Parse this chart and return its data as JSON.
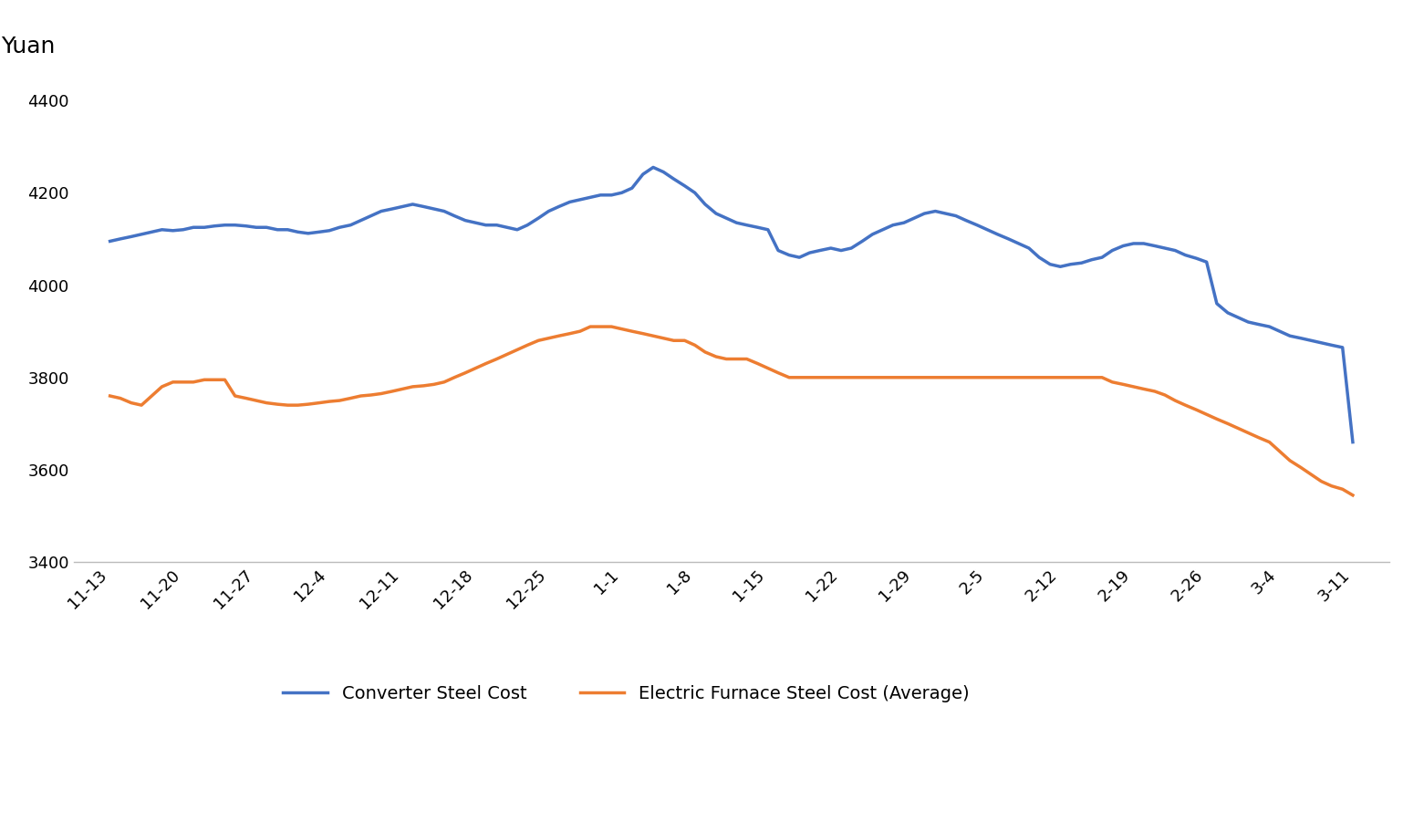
{
  "x_labels": [
    "11-13",
    "11-20",
    "11-27",
    "12-4",
    "12-11",
    "12-18",
    "12-25",
    "1-1",
    "1-8",
    "1-15",
    "1-22",
    "1-29",
    "2-5",
    "2-12",
    "2-19",
    "2-26",
    "3-4",
    "3-11"
  ],
  "converter_steel_x": [
    0,
    0.14,
    0.29,
    0.43,
    0.57,
    0.71,
    0.86,
    1.0,
    1.14,
    1.29,
    1.43,
    1.57,
    1.71,
    1.86,
    2.0,
    2.14,
    2.29,
    2.43,
    2.57,
    2.71,
    2.86,
    3.0,
    3.14,
    3.29,
    3.43,
    3.57,
    3.71,
    3.86,
    4.0,
    4.14,
    4.29,
    4.43,
    4.57,
    4.71,
    4.86,
    5.0,
    5.14,
    5.29,
    5.43,
    5.57,
    5.71,
    5.86,
    6.0,
    6.14,
    6.29,
    6.43,
    6.57,
    6.71,
    6.86,
    7.0,
    7.14,
    7.29,
    7.43,
    7.57,
    7.71,
    7.86,
    8.0,
    8.14,
    8.29,
    8.43,
    8.57,
    8.71,
    8.86,
    9.0,
    9.14,
    9.29,
    9.43,
    9.57,
    9.71,
    9.86,
    10.0,
    10.14,
    10.29,
    10.43,
    10.57,
    10.71,
    10.86,
    11.0,
    11.14,
    11.29,
    11.43,
    11.57,
    11.71,
    11.86,
    12.0,
    12.14,
    12.29,
    12.43,
    12.57,
    12.71,
    12.86,
    13.0,
    13.14,
    13.29,
    13.43,
    13.57,
    13.71,
    13.86,
    14.0,
    14.14,
    14.29,
    14.43,
    14.57,
    14.71,
    14.86,
    15.0,
    15.14,
    15.29,
    15.43,
    15.57,
    15.71,
    15.86,
    16.0,
    16.14,
    16.29,
    16.43,
    16.57,
    16.71,
    16.86,
    17.0
  ],
  "converter_steel_y": [
    4095,
    4100,
    4105,
    4110,
    4115,
    4120,
    4118,
    4120,
    4125,
    4125,
    4128,
    4130,
    4130,
    4128,
    4125,
    4125,
    4120,
    4120,
    4115,
    4112,
    4115,
    4118,
    4125,
    4130,
    4140,
    4150,
    4160,
    4165,
    4170,
    4175,
    4170,
    4165,
    4160,
    4150,
    4140,
    4135,
    4130,
    4130,
    4125,
    4120,
    4130,
    4145,
    4160,
    4170,
    4180,
    4185,
    4190,
    4195,
    4195,
    4200,
    4210,
    4240,
    4255,
    4245,
    4230,
    4215,
    4200,
    4175,
    4155,
    4145,
    4135,
    4130,
    4125,
    4120,
    4075,
    4065,
    4060,
    4070,
    4075,
    4080,
    4075,
    4080,
    4095,
    4110,
    4120,
    4130,
    4135,
    4145,
    4155,
    4160,
    4155,
    4150,
    4140,
    4130,
    4120,
    4110,
    4100,
    4090,
    4080,
    4060,
    4045,
    4040,
    4045,
    4048,
    4055,
    4060,
    4075,
    4085,
    4090,
    4090,
    4085,
    4080,
    4075,
    4065,
    4058,
    4050,
    3960,
    3940,
    3930,
    3920,
    3915,
    3910,
    3900,
    3890,
    3885,
    3880,
    3875,
    3870,
    3865,
    3660
  ],
  "electric_furnace_x": [
    0,
    0.14,
    0.29,
    0.43,
    0.57,
    0.71,
    0.86,
    1.0,
    1.14,
    1.29,
    1.43,
    1.57,
    1.71,
    1.86,
    2.0,
    2.14,
    2.29,
    2.43,
    2.57,
    2.71,
    2.86,
    3.0,
    3.14,
    3.29,
    3.43,
    3.57,
    3.71,
    3.86,
    4.0,
    4.14,
    4.29,
    4.43,
    4.57,
    4.71,
    4.86,
    5.0,
    5.14,
    5.29,
    5.43,
    5.57,
    5.71,
    5.86,
    6.0,
    6.14,
    6.29,
    6.43,
    6.57,
    6.71,
    6.86,
    7.0,
    7.14,
    7.29,
    7.43,
    7.57,
    7.71,
    7.86,
    8.0,
    8.14,
    8.29,
    8.43,
    8.57,
    8.71,
    8.86,
    9.0,
    9.14,
    9.29,
    9.43,
    9.57,
    9.71,
    9.86,
    10.0,
    10.14,
    10.29,
    10.43,
    10.57,
    10.71,
    10.86,
    11.0,
    11.14,
    11.29,
    11.43,
    11.57,
    11.71,
    11.86,
    12.0,
    12.14,
    12.29,
    12.43,
    12.57,
    12.71,
    12.86,
    13.0,
    13.14,
    13.29,
    13.43,
    13.57,
    13.71,
    13.86,
    14.0,
    14.14,
    14.29,
    14.43,
    14.57,
    14.71,
    14.86,
    15.0,
    15.14,
    15.29,
    15.43,
    15.57,
    15.71,
    15.86,
    16.0,
    16.14,
    16.29,
    16.43,
    16.57,
    16.71,
    16.86,
    17.0
  ],
  "electric_furnace_y": [
    3760,
    3755,
    3745,
    3740,
    3760,
    3780,
    3790,
    3790,
    3790,
    3795,
    3795,
    3795,
    3760,
    3755,
    3750,
    3745,
    3742,
    3740,
    3740,
    3742,
    3745,
    3748,
    3750,
    3755,
    3760,
    3762,
    3765,
    3770,
    3775,
    3780,
    3782,
    3785,
    3790,
    3800,
    3810,
    3820,
    3830,
    3840,
    3850,
    3860,
    3870,
    3880,
    3885,
    3890,
    3895,
    3900,
    3910,
    3910,
    3910,
    3905,
    3900,
    3895,
    3890,
    3885,
    3880,
    3880,
    3870,
    3855,
    3845,
    3840,
    3840,
    3840,
    3830,
    3820,
    3810,
    3800,
    3800,
    3800,
    3800,
    3800,
    3800,
    3800,
    3800,
    3800,
    3800,
    3800,
    3800,
    3800,
    3800,
    3800,
    3800,
    3800,
    3800,
    3800,
    3800,
    3800,
    3800,
    3800,
    3800,
    3800,
    3800,
    3800,
    3800,
    3800,
    3800,
    3800,
    3790,
    3785,
    3780,
    3775,
    3770,
    3762,
    3750,
    3740,
    3730,
    3720,
    3710,
    3700,
    3690,
    3680,
    3670,
    3660,
    3640,
    3620,
    3605,
    3590,
    3575,
    3565,
    3558,
    3545
  ],
  "converter_color": "#4472C4",
  "electric_color": "#ED7D31",
  "converter_label": "Converter Steel Cost",
  "electric_label": "Electric Furnace Steel Cost (Average)",
  "ylabel": "Yuan",
  "ylim": [
    3400,
    4450
  ],
  "yticks": [
    3400,
    3600,
    3800,
    4000,
    4200,
    4400
  ],
  "line_width": 2.5,
  "background_color": "#FFFFFF"
}
